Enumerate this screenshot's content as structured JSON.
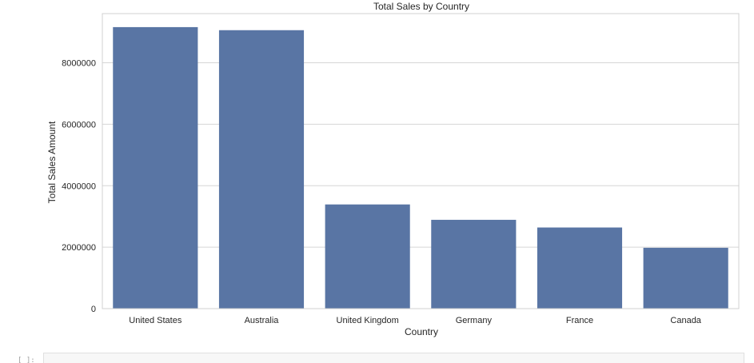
{
  "chart_data": {
    "type": "bar",
    "title": "Total Sales by Country",
    "xlabel": "Country",
    "ylabel": "Total Sales Amount",
    "categories": [
      "United States",
      "Australia",
      "United Kingdom",
      "Germany",
      "France",
      "Canada"
    ],
    "values": [
      9160000,
      9060000,
      3390000,
      2890000,
      2640000,
      1980000
    ],
    "ylim": [
      0,
      9600000
    ],
    "yticks": [
      0,
      2000000,
      4000000,
      6000000,
      8000000
    ],
    "ytick_labels": [
      "0",
      "2000000",
      "4000000",
      "6000000",
      "8000000"
    ],
    "grid": true,
    "bar_color": "#5975a4",
    "grid_color": "#d6d6d6"
  },
  "notebook": {
    "next_cell_prompt": "[ ]:"
  }
}
